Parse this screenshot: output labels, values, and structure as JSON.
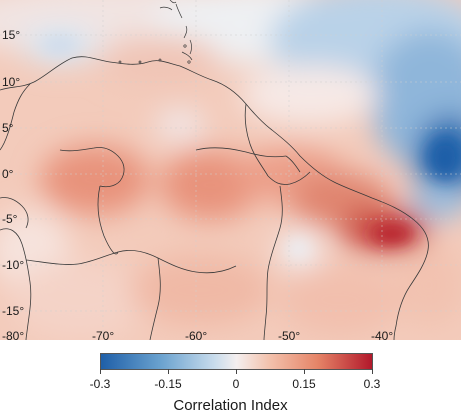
{
  "map": {
    "lat_labels": [
      "15°",
      "10°",
      "5°",
      "0°",
      "-5°",
      "-10°",
      "-15°",
      "-80°"
    ],
    "lon_labels": [
      "-70°",
      "-60°",
      "-50°",
      "-40°"
    ]
  },
  "colorbar": {
    "ticks": [
      "-0.3",
      "-0.15",
      "0",
      "0.15",
      "0.3"
    ],
    "title": "Correlation Index",
    "range": [
      -0.3,
      0.3
    ],
    "colors": {
      "negative": "#1f5fa8",
      "neutral": "#f4efef",
      "positive": "#b2182b"
    }
  }
}
